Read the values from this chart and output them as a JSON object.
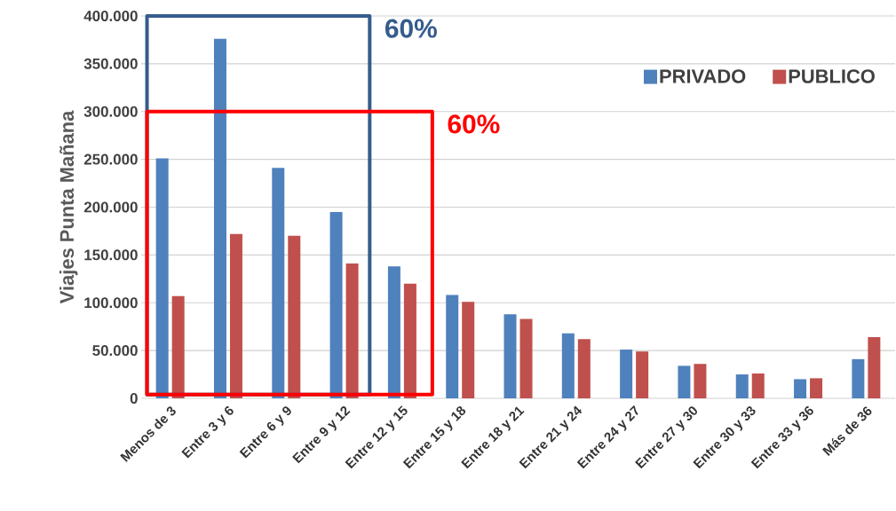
{
  "chart_data": {
    "type": "bar",
    "ylabel": "Viajes Punta Mañana",
    "categories": [
      "Menos de 3",
      "Entre 3 y 6",
      "Entre 6 y 9",
      "Entre 9 y 12",
      "Entre 12 y 15",
      "Entre 15 y 18",
      "Entre 18 y 21",
      "Entre 21 y 24",
      "Entre 24 y 27",
      "Entre 27 y 30",
      "Entre 30 y 33",
      "Entre 33 y 36",
      "Más de 36"
    ],
    "series": [
      {
        "name": "PRIVADO",
        "color": "#4f81bd",
        "values": [
          251000,
          376000,
          241000,
          195000,
          138000,
          108000,
          88000,
          68000,
          51000,
          34000,
          25000,
          20000,
          41000
        ]
      },
      {
        "name": "PUBLICO",
        "color": "#c0504d",
        "values": [
          107000,
          172000,
          170000,
          141000,
          120000,
          101000,
          83000,
          62000,
          49000,
          36000,
          26000,
          21000,
          64000
        ]
      }
    ],
    "ylim": [
      0,
      400000
    ],
    "yticks": [
      {
        "value": 0,
        "label": "0"
      },
      {
        "value": 50000,
        "label": "50.000"
      },
      {
        "value": 100000,
        "label": "100.000"
      },
      {
        "value": 150000,
        "label": "150.000"
      },
      {
        "value": 200000,
        "label": "200.000"
      },
      {
        "value": 250000,
        "label": "250.000"
      },
      {
        "value": 300000,
        "label": "300.000"
      },
      {
        "value": 350000,
        "label": "350.000"
      },
      {
        "value": 400000,
        "label": "400.000"
      }
    ],
    "grid": "y",
    "legend": "top right",
    "annotations": [
      "60%",
      "60%"
    ]
  }
}
